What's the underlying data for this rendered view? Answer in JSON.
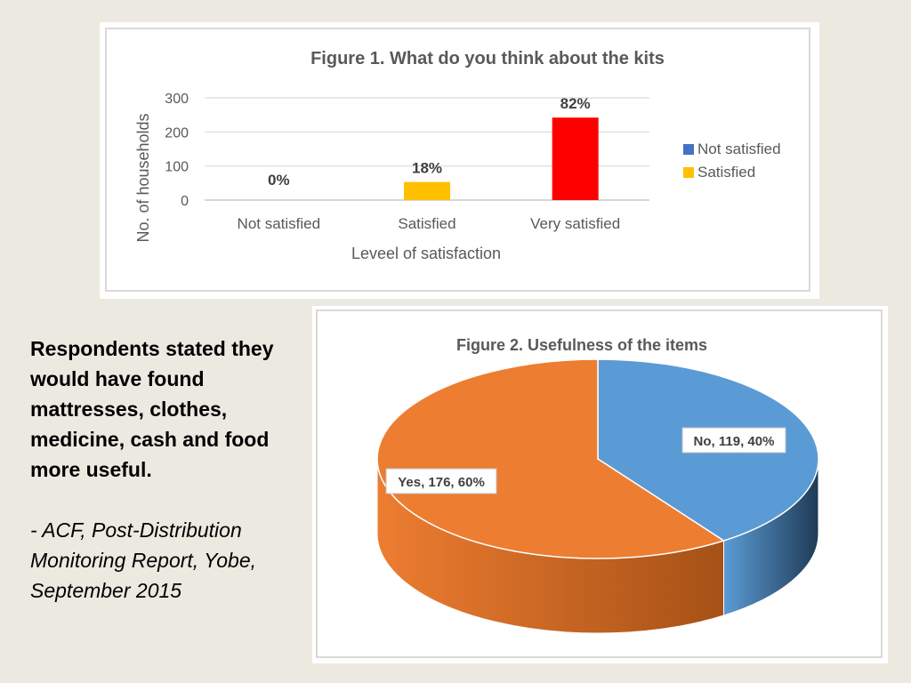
{
  "caption": {
    "statement": "Respondents stated they would have found mattresses, clothes, medicine, cash and food more useful.",
    "citation": "- ACF, Post-Distribution Monitoring Report, Yobe, September 2015"
  },
  "chart_data": [
    {
      "type": "bar",
      "title": "Figure 1. What do you think about the kits",
      "xlabel": "Leveel of satisfaction",
      "ylabel": "No. of households",
      "categories": [
        "Not satisfied",
        "Satisfied",
        "Very satisfied"
      ],
      "values": [
        0,
        53,
        242
      ],
      "data_labels": [
        "0%",
        "18%",
        "82%"
      ],
      "bar_colors": [
        "#5b9bd5",
        "#ffc000",
        "#ff0000"
      ],
      "ylim": [
        0,
        300
      ],
      "yticks": [
        0,
        100,
        200,
        300
      ],
      "grid": true,
      "legend_position": "right",
      "legend": [
        {
          "label": "Not satisfied",
          "color": "#4472c4"
        },
        {
          "label": "Satisfied",
          "color": "#ffc000"
        }
      ]
    },
    {
      "type": "pie",
      "title": "Figure 2. Usefulness of the items",
      "style": "3d",
      "slices": [
        {
          "label": "No",
          "value": 119,
          "percent": "40%",
          "data_label": "No, 119, 40%",
          "color": "#5b9bd5",
          "side_color": "#1f3b57"
        },
        {
          "label": "Yes",
          "value": 176,
          "percent": "60%",
          "data_label": "Yes, 176, 60%",
          "color": "#ed7d31",
          "side_color": "#a65117"
        }
      ]
    }
  ]
}
